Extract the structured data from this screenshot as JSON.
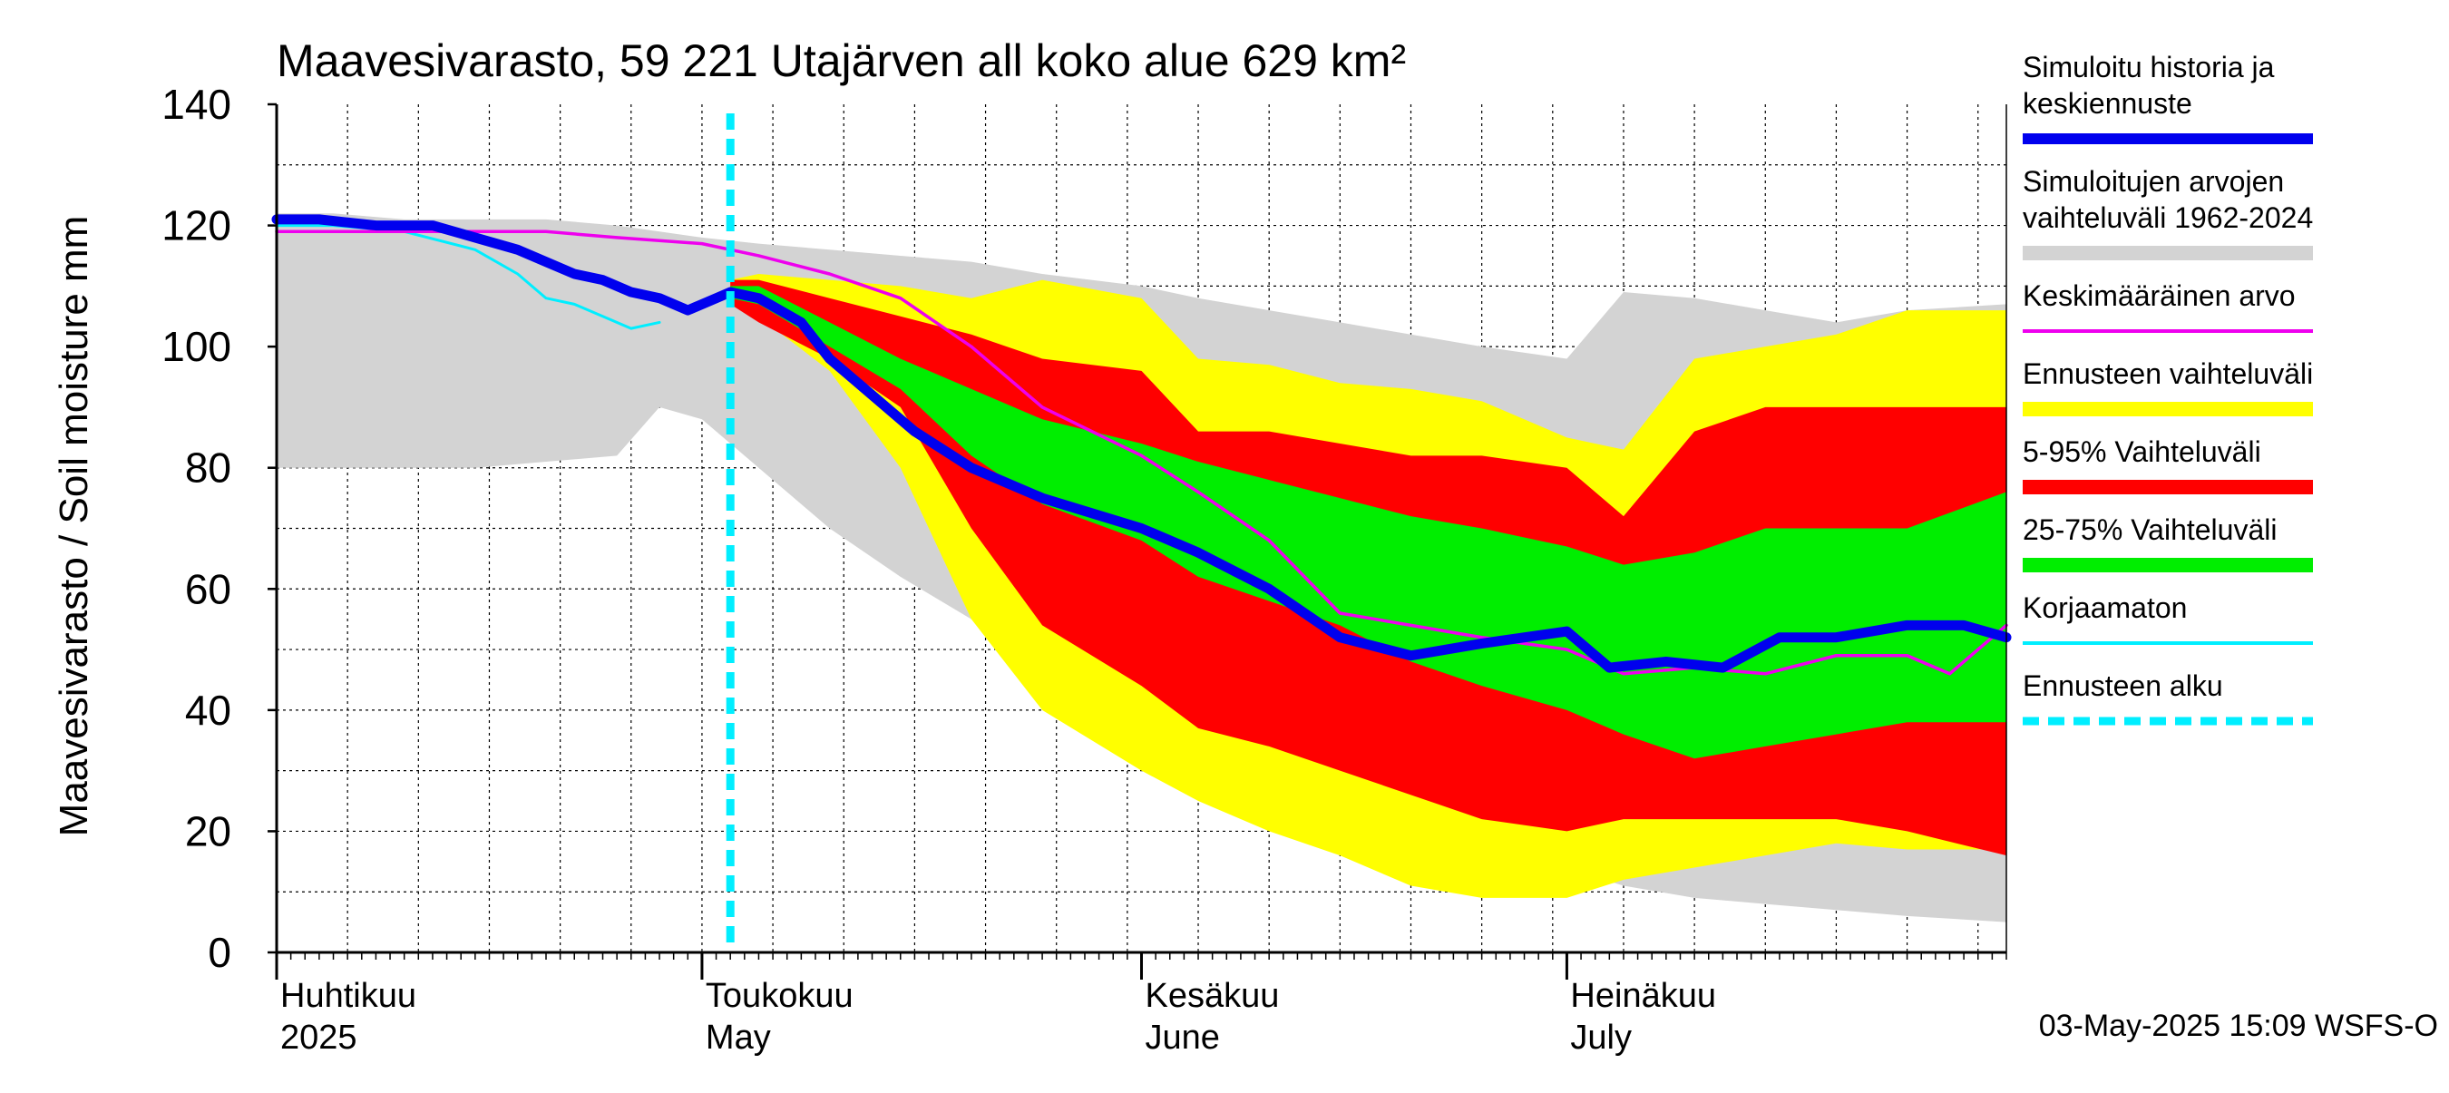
{
  "chart_data": {
    "type": "area",
    "title": "Maavesivarasto, 59 221 Utajärven all koko alue 629 km²",
    "ylabel": "Maavesivarasto / Soil moisture   mm",
    "xlabel": "",
    "ylim": [
      0,
      140
    ],
    "y_ticks": [
      0,
      20,
      40,
      60,
      80,
      100,
      120,
      140
    ],
    "x_range": [
      "2025-04-01",
      "2025-08-01"
    ],
    "grid": true,
    "legend_position": "right",
    "month_labels": [
      {
        "date": "2025-04-01",
        "line1": "Huhtikuu",
        "line2": "2025"
      },
      {
        "date": "2025-05-01",
        "line1": "Toukokuu",
        "line2": "May"
      },
      {
        "date": "2025-06-01",
        "line1": "Kesäkuu",
        "line2": "June"
      },
      {
        "date": "2025-07-01",
        "line1": "Heinäkuu",
        "line2": "July"
      }
    ],
    "forecast_start": "2025-05-03",
    "timestamp": "03-May-2025 15:09 WSFS-O",
    "colors": {
      "history_range": "#d3d3d3",
      "forecast_range": "#ffff00",
      "p5_95": "#ff0000",
      "p25_75": "#00ee00",
      "simulated": "#0000ee",
      "mean": "#ee00ee",
      "uncorrected": "#00eeff",
      "forecast_start": "#00eeff"
    },
    "legend": [
      {
        "key": "simulated",
        "label": [
          "Simuloitu historia ja",
          "keskiennuste"
        ],
        "style": "thick"
      },
      {
        "key": "history_range",
        "label": [
          "Simuloitujen arvojen",
          "vaihteluväli 1962-2024"
        ],
        "style": "band"
      },
      {
        "key": "mean",
        "label": [
          "Keskimääräinen arvo"
        ],
        "style": "thin"
      },
      {
        "key": "forecast_range",
        "label": [
          "Ennusteen vaihteluväli"
        ],
        "style": "band"
      },
      {
        "key": "p5_95",
        "label": [
          "5-95% Vaihteluväli"
        ],
        "style": "band"
      },
      {
        "key": "p25_75",
        "label": [
          "25-75% Vaihteluväli"
        ],
        "style": "band"
      },
      {
        "key": "uncorrected",
        "label": [
          "Korjaamaton"
        ],
        "style": "thin"
      },
      {
        "key": "forecast_start",
        "label": [
          "Ennusteen alku"
        ],
        "style": "dashed"
      }
    ],
    "series": {
      "history_range": {
        "x": [
          "2025-04-01",
          "2025-04-05",
          "2025-04-10",
          "2025-04-15",
          "2025-04-20",
          "2025-04-25",
          "2025-04-28",
          "2025-05-01",
          "2025-05-05",
          "2025-05-10",
          "2025-05-15",
          "2025-05-20",
          "2025-05-25",
          "2025-06-01",
          "2025-06-05",
          "2025-06-10",
          "2025-06-15",
          "2025-06-20",
          "2025-06-25",
          "2025-07-01",
          "2025-07-05",
          "2025-07-10",
          "2025-07-15",
          "2025-07-20",
          "2025-07-25",
          "2025-08-01"
        ],
        "upper": [
          122,
          122,
          121,
          121,
          121,
          120,
          119,
          118,
          117,
          116,
          115,
          114,
          112,
          110,
          108,
          106,
          104,
          102,
          100,
          98,
          109,
          108,
          106,
          104,
          106,
          107
        ],
        "lower": [
          80,
          80,
          80,
          80,
          81,
          82,
          90,
          88,
          80,
          70,
          62,
          55,
          47,
          38,
          33,
          28,
          25,
          22,
          18,
          14,
          11,
          9,
          8,
          7,
          6,
          5
        ]
      },
      "forecast_range": {
        "x": [
          "2025-05-03",
          "2025-05-05",
          "2025-05-10",
          "2025-05-15",
          "2025-05-20",
          "2025-05-25",
          "2025-06-01",
          "2025-06-05",
          "2025-06-10",
          "2025-06-15",
          "2025-06-20",
          "2025-06-25",
          "2025-07-01",
          "2025-07-05",
          "2025-07-10",
          "2025-07-15",
          "2025-07-20",
          "2025-07-25",
          "2025-08-01"
        ],
        "upper": [
          111,
          112,
          111,
          110,
          108,
          111,
          108,
          98,
          97,
          94,
          93,
          91,
          85,
          83,
          98,
          100,
          102,
          106,
          106
        ],
        "lower": [
          107,
          105,
          96,
          80,
          55,
          40,
          30,
          25,
          20,
          16,
          11,
          9,
          9,
          12,
          14,
          16,
          18,
          17,
          17
        ]
      },
      "p5_95": {
        "x": [
          "2025-05-03",
          "2025-05-05",
          "2025-05-10",
          "2025-05-15",
          "2025-05-20",
          "2025-05-25",
          "2025-06-01",
          "2025-06-05",
          "2025-06-10",
          "2025-06-15",
          "2025-06-20",
          "2025-06-25",
          "2025-07-01",
          "2025-07-05",
          "2025-07-10",
          "2025-07-15",
          "2025-07-20",
          "2025-07-25",
          "2025-08-01"
        ],
        "upper": [
          111,
          111,
          108,
          105,
          102,
          98,
          96,
          86,
          86,
          84,
          82,
          82,
          80,
          72,
          86,
          90,
          90,
          90,
          90
        ],
        "lower": [
          107,
          104,
          98,
          90,
          70,
          54,
          44,
          37,
          34,
          30,
          26,
          22,
          20,
          22,
          22,
          22,
          22,
          20,
          16
        ]
      },
      "p25_75": {
        "x": [
          "2025-05-03",
          "2025-05-05",
          "2025-05-10",
          "2025-05-15",
          "2025-05-20",
          "2025-05-25",
          "2025-06-01",
          "2025-06-05",
          "2025-06-10",
          "2025-06-15",
          "2025-06-20",
          "2025-06-25",
          "2025-07-01",
          "2025-07-05",
          "2025-07-10",
          "2025-07-15",
          "2025-07-20",
          "2025-07-25",
          "2025-08-01"
        ],
        "upper": [
          110,
          110,
          104,
          98,
          93,
          88,
          84,
          81,
          78,
          75,
          72,
          70,
          67,
          64,
          66,
          70,
          70,
          70,
          76
        ],
        "lower": [
          108,
          107,
          100,
          93,
          82,
          74,
          68,
          62,
          58,
          54,
          48,
          44,
          40,
          36,
          32,
          34,
          36,
          38,
          38
        ]
      },
      "simulated": {
        "x": [
          "2025-04-01",
          "2025-04-04",
          "2025-04-08",
          "2025-04-12",
          "2025-04-15",
          "2025-04-18",
          "2025-04-20",
          "2025-04-22",
          "2025-04-24",
          "2025-04-26",
          "2025-04-28",
          "2025-04-30",
          "2025-05-01",
          "2025-05-03",
          "2025-05-05",
          "2025-05-08",
          "2025-05-10",
          "2025-05-13",
          "2025-05-16",
          "2025-05-20",
          "2025-05-25",
          "2025-06-01",
          "2025-06-05",
          "2025-06-10",
          "2025-06-15",
          "2025-06-20",
          "2025-06-25",
          "2025-07-01",
          "2025-07-04",
          "2025-07-08",
          "2025-07-12",
          "2025-07-16",
          "2025-07-20",
          "2025-07-25",
          "2025-07-29",
          "2025-08-01"
        ],
        "y": [
          121,
          121,
          120,
          120,
          118,
          116,
          114,
          112,
          111,
          109,
          108,
          106,
          107,
          109,
          108,
          104,
          98,
          92,
          86,
          80,
          75,
          70,
          66,
          60,
          52,
          49,
          51,
          53,
          47,
          48,
          47,
          52,
          52,
          54,
          54,
          52
        ]
      },
      "mean": {
        "x": [
          "2025-04-01",
          "2025-04-10",
          "2025-04-20",
          "2025-04-25",
          "2025-05-01",
          "2025-05-05",
          "2025-05-10",
          "2025-05-15",
          "2025-05-20",
          "2025-05-25",
          "2025-06-01",
          "2025-06-05",
          "2025-06-10",
          "2025-06-15",
          "2025-06-20",
          "2025-06-25",
          "2025-07-01",
          "2025-07-05",
          "2025-07-10",
          "2025-07-15",
          "2025-07-20",
          "2025-07-25",
          "2025-07-28",
          "2025-08-01"
        ],
        "y": [
          119,
          119,
          119,
          118,
          117,
          115,
          112,
          108,
          100,
          90,
          82,
          76,
          68,
          56,
          54,
          52,
          50,
          46,
          47,
          46,
          49,
          49,
          46,
          54
        ]
      },
      "uncorrected": {
        "x": [
          "2025-04-01",
          "2025-04-05",
          "2025-04-10",
          "2025-04-15",
          "2025-04-18",
          "2025-04-20",
          "2025-04-22",
          "2025-04-24",
          "2025-04-26",
          "2025-04-28"
        ],
        "y": [
          120,
          120,
          119,
          116,
          112,
          108,
          107,
          105,
          103,
          104
        ]
      }
    }
  }
}
